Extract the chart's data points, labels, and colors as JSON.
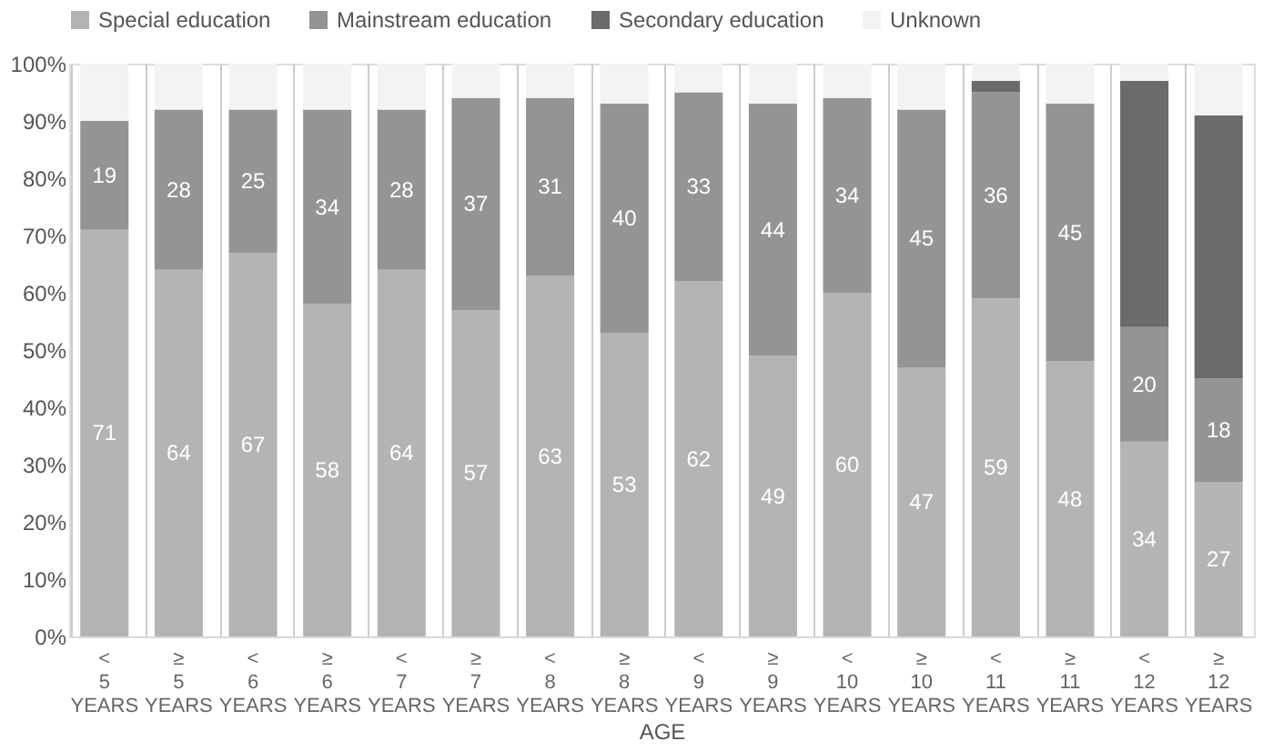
{
  "chart_data": {
    "type": "bar",
    "stacked": true,
    "xlabel": "AGE",
    "categories": [
      "< 5 YEARS",
      "≥ 5 YEARS",
      "< 6 YEARS",
      "≥ 6 YEARS",
      "< 7 YEARS",
      "≥ 7 YEARS",
      "< 8 YEARS",
      "≥ 8 YEARS",
      "< 9 YEARS",
      "≥ 9 YEARS",
      "< 10 YEARS",
      "≥ 10 YEARS",
      "< 11 YEARS",
      "≥ 11 YEARS",
      "< 12 YEARS",
      "≥ 12 YEARS"
    ],
    "series": [
      {
        "name": "Special education",
        "color": "#b4b4b4",
        "values": [
          71,
          64,
          67,
          58,
          64,
          57,
          63,
          53,
          62,
          49,
          60,
          47,
          59,
          48,
          34,
          27
        ],
        "value_labels": [
          "71",
          "64",
          "67",
          "58",
          "64",
          "57",
          "63",
          "53",
          "62",
          "49",
          "60",
          "47",
          "59",
          "48",
          "34",
          "27"
        ]
      },
      {
        "name": "Mainstream education",
        "color": "#949494",
        "values": [
          19,
          28,
          25,
          34,
          28,
          37,
          31,
          40,
          33,
          44,
          34,
          45,
          36,
          45,
          20,
          18
        ],
        "value_labels": [
          "19",
          "28",
          "25",
          "34",
          "28",
          "37",
          "31",
          "40",
          "33",
          "44",
          "34",
          "45",
          "36",
          "45",
          "20",
          "18"
        ]
      },
      {
        "name": "Secondary education",
        "color": "#6b6b6b",
        "values": [
          null,
          null,
          null,
          null,
          null,
          null,
          null,
          null,
          null,
          null,
          null,
          null,
          2,
          null,
          43,
          46
        ]
      },
      {
        "name": "Unknown",
        "color": "#f3f3f3",
        "values": [
          10,
          8,
          8,
          8,
          8,
          6,
          6,
          7,
          5,
          7,
          6,
          8,
          3,
          7,
          3,
          9
        ]
      }
    ],
    "ylim": [
      0,
      100
    ],
    "yticks": [
      {
        "value": 0,
        "label": "0%"
      },
      {
        "value": 10,
        "label": "10%"
      },
      {
        "value": 20,
        "label": "20%"
      },
      {
        "value": 30,
        "label": "30%"
      },
      {
        "value": 40,
        "label": "40%"
      },
      {
        "value": 50,
        "label": "50%"
      },
      {
        "value": 60,
        "label": "60%"
      },
      {
        "value": 70,
        "label": "70%"
      },
      {
        "value": 80,
        "label": "80%"
      },
      {
        "value": 90,
        "label": "90%"
      },
      {
        "value": 100,
        "label": "100%"
      }
    ],
    "grid": "x",
    "legend": "top"
  }
}
